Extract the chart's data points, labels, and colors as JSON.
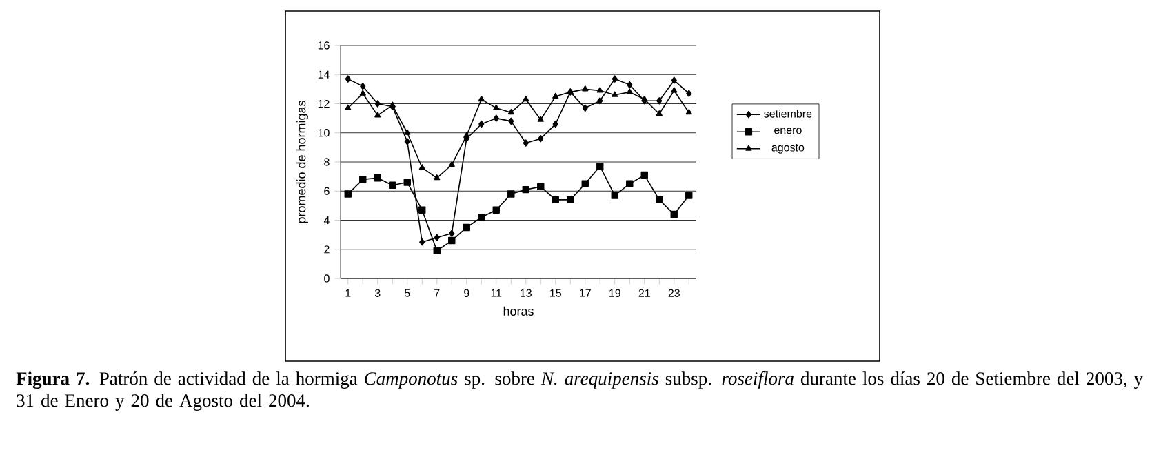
{
  "chart_data": {
    "type": "line",
    "xlabel": "horas",
    "ylabel": "promedio de hormigas",
    "categories": [
      "1",
      null,
      "3",
      null,
      "5",
      null,
      "7",
      null,
      "9",
      null,
      "11",
      null,
      "13",
      null,
      "15",
      null,
      "17",
      null,
      "19",
      null,
      "21",
      null,
      "23",
      null
    ],
    "series": [
      {
        "name": "setiembre",
        "color": "#000000",
        "marker": "diamond",
        "values": [
          13.7,
          13.2,
          12.0,
          11.8,
          9.4,
          2.5,
          2.8,
          3.1,
          9.6,
          10.6,
          11.0,
          10.8,
          9.3,
          9.6,
          10.6,
          12.8,
          11.7,
          12.2,
          13.7,
          13.3,
          12.2,
          12.2,
          13.6,
          12.7
        ]
      },
      {
        "name": "enero",
        "color": "#000000",
        "marker": "square",
        "values": [
          5.8,
          6.8,
          6.9,
          6.4,
          6.6,
          4.7,
          1.9,
          2.6,
          3.5,
          4.2,
          4.7,
          5.8,
          6.1,
          6.3,
          5.4,
          5.4,
          6.5,
          7.7,
          5.7,
          6.5,
          7.1,
          5.4,
          4.4,
          5.7
        ]
      },
      {
        "name": "agosto",
        "color": "#000000",
        "marker": "triangle",
        "values": [
          11.7,
          12.7,
          11.2,
          11.9,
          10.0,
          7.6,
          6.9,
          7.8,
          9.8,
          12.3,
          11.7,
          11.4,
          12.3,
          10.9,
          12.5,
          12.8,
          13.0,
          12.9,
          12.6,
          12.8,
          12.3,
          11.3,
          12.9,
          11.4
        ]
      }
    ],
    "ylim": [
      0,
      16
    ],
    "yticks": [
      0,
      2,
      4,
      6,
      8,
      10,
      12,
      14,
      16
    ],
    "grid": "y",
    "legend": "right",
    "line_style": "solid",
    "annotations": [
      "**Figura 7.** Patrón de actividad de la hormiga *Camponotus* sp. sobre *N. arequipensis* subsp. *roseiflora* durante los días 20 de Setiembre del 2003, y 31 de Enero y 20 de Agosto del 2004."
    ]
  }
}
